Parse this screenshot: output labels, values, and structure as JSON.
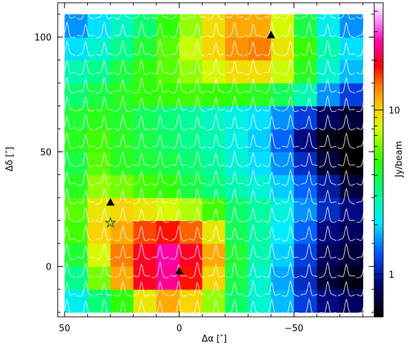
{
  "chart_data": {
    "type": "heatmap",
    "title": "",
    "xlabel": "Δα [″]",
    "ylabel": "Δδ [″]",
    "colorbar_label": "Jy/beam",
    "x_ticks": [
      50,
      0,
      -50
    ],
    "y_ticks": [
      0,
      50,
      100
    ],
    "colorbar_ticks": [
      1,
      10
    ],
    "colorbar_tick_labels": [
      "1",
      "10"
    ],
    "colorbar_scale": "log",
    "colorbar_range": [
      0.55,
      45
    ],
    "xlim": [
      53,
      -85
    ],
    "ylim": [
      -22,
      115
    ],
    "grid": false,
    "x_centers": [
      45,
      35,
      25,
      15,
      5,
      -5,
      -15,
      -25,
      -35,
      -45,
      -55,
      -65,
      -75
    ],
    "y_centers": [
      -15,
      -5,
      5,
      15,
      25,
      35,
      45,
      55,
      65,
      75,
      85,
      95,
      105
    ],
    "values": [
      [
        2.2,
        3.4,
        4.8,
        9,
        12,
        10,
        6.5,
        3.6,
        2.5,
        1.8,
        1.2,
        0.9,
        0.8
      ],
      [
        3.2,
        6,
        12,
        20,
        25,
        18,
        10,
        4,
        2.5,
        1.7,
        1.1,
        0.7,
        0.6
      ],
      [
        4.2,
        8,
        14,
        20,
        26,
        20,
        12,
        4.2,
        2.8,
        1.9,
        1.2,
        0.8,
        0.7
      ],
      [
        5.2,
        10,
        12,
        16,
        18,
        15,
        9,
        3.8,
        2.9,
        2.1,
        1.4,
        0.9,
        0.8
      ],
      [
        5.5,
        9,
        10,
        9,
        8,
        7,
        5.2,
        3.6,
        3.0,
        2.3,
        1.6,
        1.1,
        0.9
      ],
      [
        4.5,
        6.5,
        6,
        5.2,
        4.8,
        4,
        3.4,
        2.8,
        2.4,
        1.9,
        1.4,
        1.0,
        0.7
      ],
      [
        4.0,
        5.5,
        4.5,
        4.2,
        4.0,
        3.5,
        3.0,
        2.4,
        2.0,
        1.6,
        1.1,
        0.7,
        0.5
      ],
      [
        4.5,
        5.2,
        4.5,
        4.0,
        3.6,
        3.2,
        2.8,
        2.3,
        1.9,
        1.4,
        0.9,
        0.6,
        0.5
      ],
      [
        4.2,
        4.6,
        4.3,
        3.8,
        3.4,
        3.0,
        2.6,
        2.3,
        2.0,
        1.6,
        1.2,
        0.8,
        0.7
      ],
      [
        3.5,
        4.0,
        4.5,
        4.8,
        5.0,
        5.2,
        5.0,
        4.8,
        4.5,
        3.8,
        2.8,
        1.6,
        1.2
      ],
      [
        2.8,
        3.2,
        4.0,
        4.8,
        5.5,
        6.5,
        8,
        9.5,
        9.5,
        7.5,
        4.5,
        2.5,
        1.8
      ],
      [
        2.0,
        2.5,
        3.2,
        4.2,
        5.5,
        7.5,
        10,
        13,
        14,
        9,
        5,
        2.8,
        2.0
      ],
      [
        1.6,
        2.0,
        2.6,
        3.5,
        4.8,
        6.5,
        9.5,
        12,
        12,
        8,
        4,
        2.2,
        1.6
      ]
    ],
    "markers": [
      {
        "shape": "triangle",
        "color": "#000000",
        "x": 0,
        "y": -2
      },
      {
        "shape": "triangle",
        "color": "#000000",
        "x": 30,
        "y": 28
      },
      {
        "shape": "triangle",
        "color": "#000000",
        "x": -40,
        "y": 101
      },
      {
        "shape": "star",
        "color": "#2e8b2e",
        "x": 30,
        "y": 19
      }
    ]
  }
}
